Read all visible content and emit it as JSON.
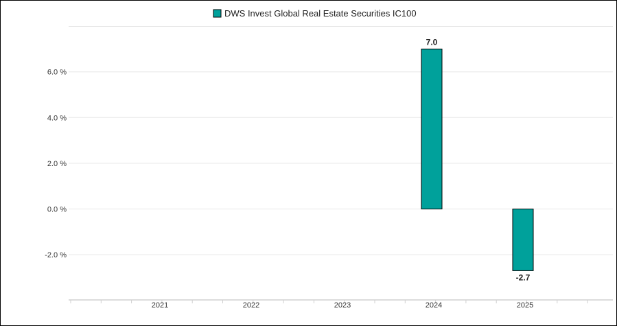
{
  "chart_data": {
    "type": "bar",
    "categories": [
      "2021",
      "2022",
      "2023",
      "2024",
      "2025"
    ],
    "series": [
      {
        "name": "DWS Invest Global Real Estate Securities IC100",
        "values": [
          null,
          null,
          null,
          7.0,
          -2.7
        ],
        "data_labels": [
          "",
          "",
          "",
          "7.0",
          "-2.7"
        ],
        "color": "#00A19B"
      }
    ],
    "y_ticks": [
      6.0,
      4.0,
      2.0,
      0.0,
      -2.0
    ],
    "y_tick_labels": [
      "6.0 %",
      "4.0 %",
      "2.0 %",
      "0.0 %",
      "-2.0 %"
    ],
    "ylim": [
      -4.0,
      8.0
    ],
    "grid": true,
    "legend_position": "top-center",
    "title": "",
    "xlabel": "",
    "ylabel": ""
  }
}
